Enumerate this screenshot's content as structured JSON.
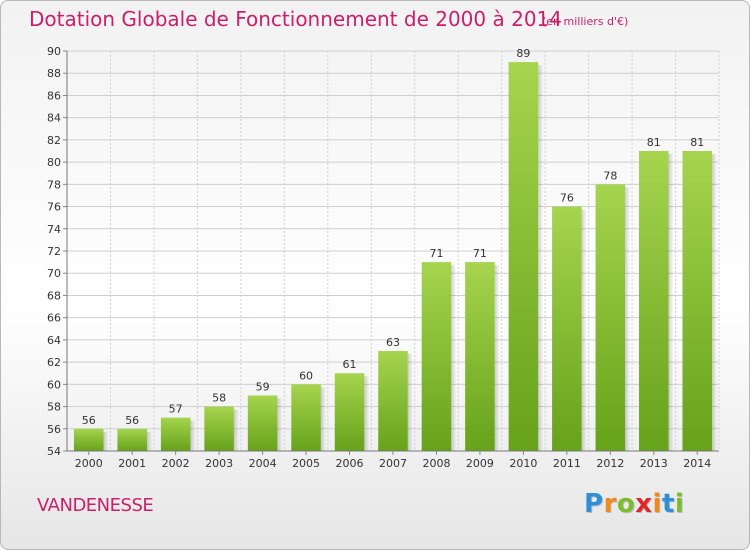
{
  "chart_data": {
    "type": "bar",
    "title": "Dotation Globale de Fonctionnement de 2000 à 2014",
    "subtitle": "(en milliers d'€)",
    "xlabel": "",
    "ylabel": "",
    "categories": [
      "2000",
      "2001",
      "2002",
      "2003",
      "2004",
      "2005",
      "2006",
      "2007",
      "2008",
      "2009",
      "2010",
      "2011",
      "2012",
      "2013",
      "2014"
    ],
    "values": [
      56,
      56,
      57,
      58,
      59,
      60,
      61,
      63,
      71,
      71,
      89,
      76,
      78,
      81,
      81
    ],
    "ylim": [
      54,
      90
    ],
    "yticks": [
      54,
      56,
      58,
      60,
      62,
      64,
      66,
      68,
      70,
      72,
      74,
      76,
      78,
      80,
      82,
      84,
      86,
      88,
      90
    ],
    "grid": true,
    "bar_color": "#7ab52f",
    "bar_color_light": "#a6d44e"
  },
  "commune": "VANDENESSE",
  "logo": {
    "text": "Proxiti",
    "letters": [
      "P",
      "r",
      "o",
      "x",
      "i",
      "t",
      "i"
    ]
  },
  "colors": {
    "title": "#cc1f6a",
    "grid": "#cfcfcf",
    "axis_text": "#333333"
  }
}
